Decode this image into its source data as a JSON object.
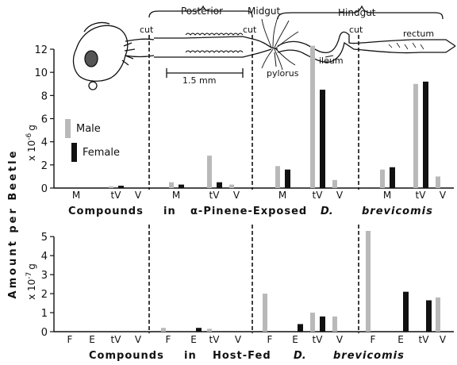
{
  "colors": {
    "male": "#b9b9b9",
    "female": "#111111",
    "ink": "#111111"
  },
  "labels": {
    "ylab_main": "Amount per Beetle",
    "top_unit": "x 10",
    "top_unit_exp": "-6",
    "top_unit_tail": "g",
    "bottom_unit": "x 10",
    "bottom_unit_exp": "-7",
    "bottom_unit_tail": "g",
    "legend_male": "Male",
    "legend_female": "Female",
    "top_title_compounds": "Compounds",
    "top_title_in": "in",
    "top_title_pinene": "α-Pinene-Exposed",
    "top_title_species_d": "D.",
    "top_title_species": "brevicomis",
    "bottom_title_compounds": "Compounds",
    "bottom_title_in": "in",
    "bottom_title_hostfed": "Host-Fed",
    "bottom_title_species_d": "D.",
    "bottom_title_species": "brevicomis"
  },
  "diagram": {
    "posterior": "Posterior",
    "midgut": "Midgut",
    "hindgut": "Hindgut",
    "cut1": "cut",
    "cut2": "cut",
    "cut3": "cut",
    "scale": "1.5 mm",
    "pylorus": "pylorus",
    "ileum": "ileum",
    "rectum": "rectum"
  },
  "chart_data": [
    {
      "type": "bar",
      "title": "Compounds in α-Pinene-Exposed D. brevicomis",
      "unit": "x 10^-6 g",
      "ylim": [
        0,
        12
      ],
      "yticks": [
        0,
        2,
        4,
        6,
        8,
        10,
        12
      ],
      "groups": [
        {
          "categories": [
            "M",
            "tV",
            "V"
          ],
          "series": [
            {
              "name": "Male",
              "values": [
                0.0,
                0.15,
                0.0
              ]
            },
            {
              "name": "Female",
              "values": [
                0.0,
                0.2,
                0.0
              ]
            }
          ]
        },
        {
          "categories": [
            "M",
            "tV",
            "V"
          ],
          "series": [
            {
              "name": "Male",
              "values": [
                0.5,
                2.8,
                0.3
              ]
            },
            {
              "name": "Female",
              "values": [
                0.3,
                0.5,
                0.0
              ]
            }
          ]
        },
        {
          "categories": [
            "M",
            "tV",
            "V"
          ],
          "series": [
            {
              "name": "Male",
              "values": [
                1.9,
                12.3,
                0.7
              ]
            },
            {
              "name": "Female",
              "values": [
                1.6,
                8.5,
                0.0
              ]
            }
          ]
        },
        {
          "categories": [
            "M",
            "tV",
            "V"
          ],
          "series": [
            {
              "name": "Male",
              "values": [
                1.6,
                9.0,
                1.0
              ]
            },
            {
              "name": "Female",
              "values": [
                1.8,
                9.2,
                0.0
              ]
            }
          ]
        }
      ]
    },
    {
      "type": "bar",
      "title": "Compounds in Host-Fed D. brevicomis",
      "unit": "x 10^-7 g",
      "ylim": [
        0,
        5.3
      ],
      "yticks": [
        0,
        1,
        2,
        3,
        4,
        5
      ],
      "groups": [
        {
          "categories": [
            "F",
            "E",
            "tV",
            "V"
          ],
          "series": [
            {
              "name": "Male",
              "values": [
                0,
                0,
                0,
                0
              ]
            },
            {
              "name": "Female",
              "values": [
                0,
                0,
                0,
                0
              ]
            }
          ]
        },
        {
          "categories": [
            "F",
            "E",
            "tV",
            "V"
          ],
          "series": [
            {
              "name": "Male",
              "values": [
                0.2,
                0.0,
                0.15,
                0.0
              ]
            },
            {
              "name": "Female",
              "values": [
                0.0,
                0.2,
                0.0,
                0.0
              ]
            }
          ]
        },
        {
          "categories": [
            "F",
            "E",
            "tV",
            "V"
          ],
          "series": [
            {
              "name": "Male",
              "values": [
                2.0,
                0.0,
                1.0,
                0.8
              ]
            },
            {
              "name": "Female",
              "values": [
                0.0,
                0.4,
                0.8,
                0.0
              ]
            }
          ]
        },
        {
          "categories": [
            "F",
            "E",
            "tV",
            "V"
          ],
          "series": [
            {
              "name": "Male",
              "values": [
                5.3,
                0.0,
                0.0,
                1.8
              ]
            },
            {
              "name": "Female",
              "values": [
                0.0,
                2.1,
                1.65,
                0.0
              ]
            }
          ]
        }
      ]
    }
  ]
}
